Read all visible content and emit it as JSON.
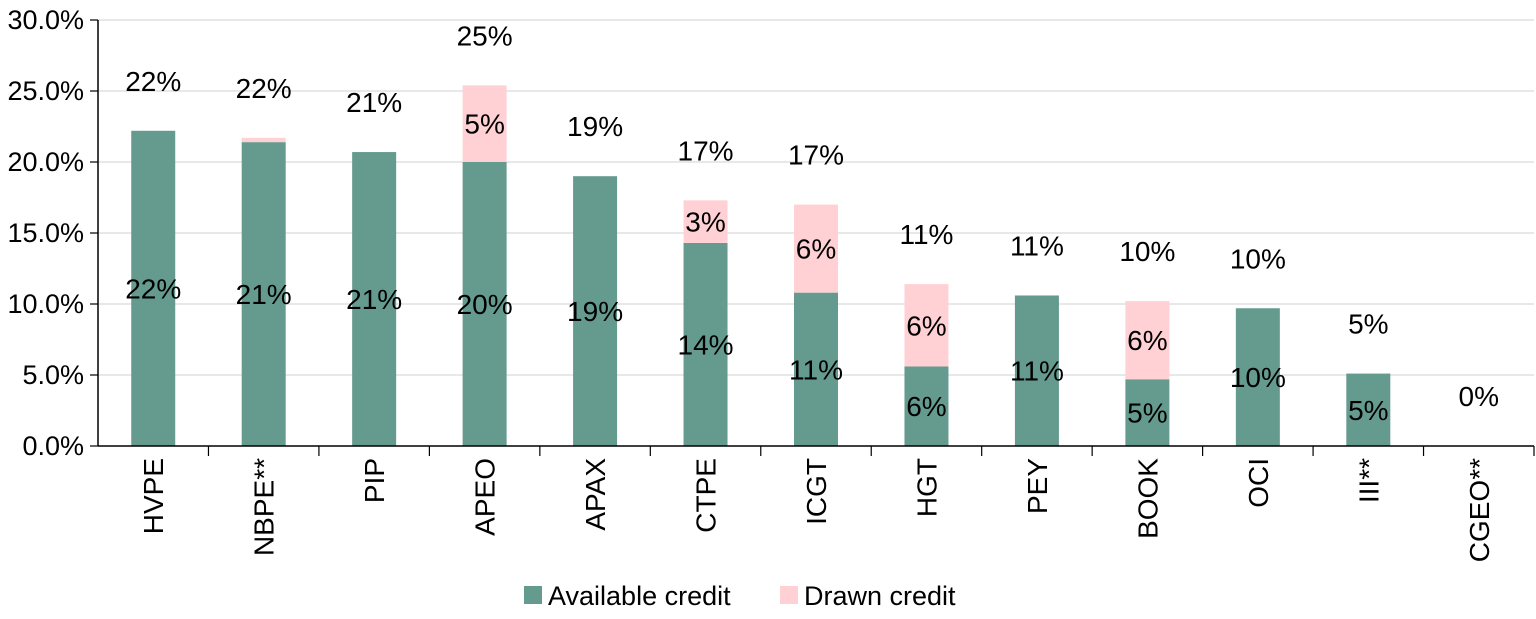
{
  "chart_data": {
    "type": "bar",
    "stacked": true,
    "title": "",
    "xlabel": "",
    "ylabel": "",
    "ylim": [
      0,
      30
    ],
    "yticks": [
      "0.0%",
      "5.0%",
      "10.0%",
      "15.0%",
      "20.0%",
      "25.0%",
      "30.0%"
    ],
    "grid": true,
    "legend_position": "bottom",
    "categories": [
      "HVPE",
      "NBPE**",
      "PIP",
      "APEO",
      "APAX",
      "CTPE",
      "ICGT",
      "HGT",
      "PEY",
      "BOOK",
      "OCI",
      "III**",
      "CGEO**"
    ],
    "series": [
      {
        "name": "Available credit",
        "color": "#659b8f",
        "values": [
          22.2,
          21.4,
          20.7,
          20.0,
          19.0,
          14.3,
          10.8,
          5.6,
          10.6,
          4.7,
          9.7,
          5.1,
          0
        ],
        "labels": [
          "22%",
          "21%",
          "21%",
          "20%",
          "19%",
          "14%",
          "11%",
          "6%",
          "11%",
          "5%",
          "10%",
          "5%",
          ""
        ]
      },
      {
        "name": "Drawn credit",
        "color": "#ffd1d5",
        "values": [
          0,
          0.3,
          0,
          5.4,
          0,
          3.0,
          6.2,
          5.8,
          0,
          5.5,
          0,
          0,
          0
        ],
        "labels": [
          "",
          "",
          "",
          "5%",
          "",
          "3%",
          "6%",
          "6%",
          "",
          "6%",
          "",
          "",
          ""
        ]
      }
    ],
    "totals": [
      "22%",
      "22%",
      "21%",
      "25%",
      "19%",
      "17%",
      "17%",
      "11%",
      "11%",
      "10%",
      "10%",
      "5%",
      "0%"
    ]
  }
}
